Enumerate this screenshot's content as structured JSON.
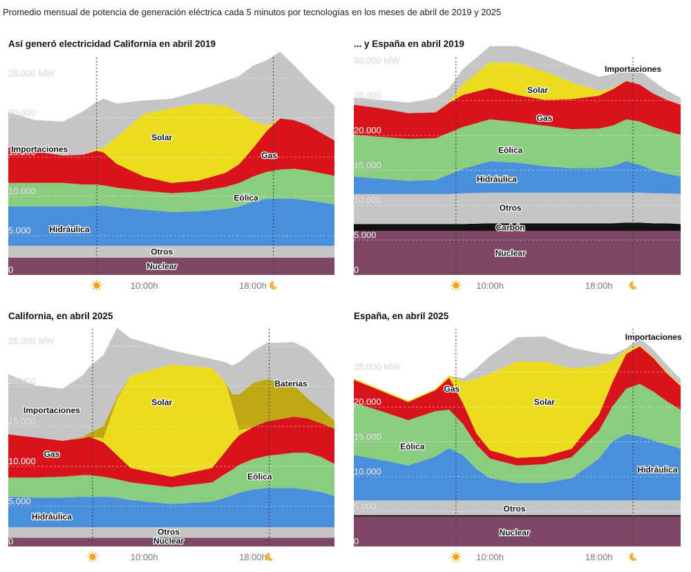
{
  "subtitle": "Promedio mensual de potencia de generación eléctrica cada 5 minutos por tecnologías en los meses de abril de 2019 y 2025",
  "colors": {
    "Nuclear": "#7d4765",
    "Otros": "#c5c5c5",
    "Carbón": "#111111",
    "Hidráulica": "#4a8fdc",
    "Eólica": "#8acc80",
    "Solar": "#ecdc1f",
    "Gas": "#d9131b",
    "Baterías": "#bea816",
    "Importaciones": "#c5c5c5"
  },
  "icons": {
    "sunrise": "sun-icon",
    "sunset": "moon-icon"
  },
  "chart_data": [
    {
      "id": "ca2019",
      "type": "area",
      "title": "Así generó electricidad California en abril 2019",
      "x": [
        0,
        2,
        4,
        5.5,
        6.5,
        7,
        8,
        10,
        12,
        14,
        16,
        17,
        18,
        19,
        20,
        21,
        22,
        24
      ],
      "xticks": [
        "10:00h",
        "18:00h"
      ],
      "xtick_values": [
        10,
        18
      ],
      "sunrise": 6.5,
      "sunset": 19.5,
      "ylim": [
        0,
        27500
      ],
      "yticks": [
        "0",
        "5.000",
        "10.000",
        "15.000",
        "20.000",
        "25.000 MW"
      ],
      "ytick_values": [
        0,
        5000,
        10000,
        15000,
        20000,
        25000
      ],
      "series": [
        {
          "name": "Nuclear",
          "values": [
            2200,
            2200,
            2200,
            2200,
            2200,
            2200,
            2200,
            2200,
            2200,
            2200,
            2200,
            2200,
            2200,
            2200,
            2200,
            2200,
            2200,
            2200
          ]
        },
        {
          "name": "Otros",
          "values": [
            1500,
            1500,
            1500,
            1500,
            1500,
            1500,
            1500,
            1500,
            1500,
            1500,
            1500,
            1500,
            1500,
            1500,
            1500,
            1500,
            1500,
            1500
          ]
        },
        {
          "name": "Hidráulica",
          "values": [
            5000,
            5000,
            5000,
            5000,
            5100,
            5100,
            4900,
            4600,
            4300,
            4400,
            4700,
            5000,
            5600,
            6000,
            6000,
            6000,
            5800,
            5300
          ]
        },
        {
          "name": "Eólica",
          "values": [
            3000,
            3000,
            3000,
            2800,
            2700,
            2600,
            2500,
            2400,
            2400,
            2500,
            2800,
            3000,
            3200,
            3400,
            3700,
            3800,
            3800,
            3600
          ]
        },
        {
          "name": "Gas",
          "values": [
            4500,
            4000,
            3500,
            3800,
            4300,
            4200,
            3000,
            1800,
            1300,
            1400,
            1800,
            2400,
            3600,
            5200,
            6500,
            6200,
            5800,
            4500
          ]
        },
        {
          "name": "Solar",
          "values": [
            0,
            0,
            0,
            0,
            200,
            600,
            3500,
            8000,
            9500,
            9800,
            8500,
            6500,
            3500,
            700,
            0,
            0,
            0,
            0
          ]
        },
        {
          "name": "Importaciones",
          "values": [
            4500,
            4000,
            4300,
            5500,
            6000,
            6200,
            4200,
            1700,
            1200,
            1600,
            3200,
            4700,
            7000,
            8300,
            8500,
            7000,
            5800,
            4400
          ]
        }
      ],
      "labels": [
        {
          "text": "Solar",
          "x": 11.3,
          "y": 17500
        },
        {
          "text": "Gas",
          "x": 19.2,
          "y": 15200
        },
        {
          "text": "Importaciones",
          "x": 2.3,
          "y": 16000
        },
        {
          "text": "Eólica",
          "x": 17.5,
          "y": 9800
        },
        {
          "text": "Hidráulica",
          "x": 4.5,
          "y": 5800
        },
        {
          "text": "Otros",
          "x": 11.3,
          "y": 2950
        },
        {
          "text": "Nuclear",
          "x": 11.3,
          "y": 1100
        }
      ]
    },
    {
      "id": "es2019",
      "type": "area",
      "title": "... y España en abril 2019",
      "x": [
        0,
        2,
        4,
        6,
        7,
        8,
        10,
        12,
        14,
        16,
        18,
        19,
        20,
        21,
        22,
        23,
        24
      ],
      "xticks": [
        "10:00h",
        "18:00h"
      ],
      "xtick_values": [
        10,
        18
      ],
      "sunrise": 7.5,
      "sunset": 20.5,
      "ylim": [
        0,
        31000
      ],
      "yticks": [
        "0",
        "5.000",
        "10.000",
        "15.000",
        "20.000",
        "25.000",
        "30.000 MW"
      ],
      "ytick_values": [
        0,
        5000,
        10000,
        15000,
        20000,
        25000,
        30000
      ],
      "series": [
        {
          "name": "Nuclear",
          "values": [
            6300,
            6300,
            6300,
            6300,
            6300,
            6300,
            6300,
            6300,
            6300,
            6300,
            6300,
            6300,
            6300,
            6300,
            6300,
            6300,
            6300
          ]
        },
        {
          "name": "Carbón",
          "values": [
            1000,
            1000,
            1000,
            1000,
            1000,
            1000,
            1100,
            1100,
            1100,
            1100,
            1100,
            1100,
            1200,
            1200,
            1100,
            1100,
            1000
          ]
        },
        {
          "name": "Otros",
          "values": [
            4300,
            4300,
            4300,
            4300,
            4300,
            4400,
            4400,
            4400,
            4400,
            4400,
            4400,
            4400,
            4300,
            4300,
            4300,
            4300,
            4300
          ]
        },
        {
          "name": "Hidráulica",
          "values": [
            2500,
            2200,
            1900,
            2000,
            2800,
            3500,
            4500,
            4300,
            3800,
            3500,
            3500,
            3800,
            4500,
            4000,
            3300,
            2800,
            2500
          ]
        },
        {
          "name": "Eólica",
          "values": [
            6000,
            6000,
            6000,
            6000,
            6000,
            6000,
            6000,
            5800,
            5800,
            5600,
            5700,
            5800,
            6000,
            6200,
            6200,
            6100,
            6000
          ]
        },
        {
          "name": "Gas",
          "values": [
            4300,
            4100,
            3700,
            3700,
            4300,
            4600,
            4500,
            3900,
            3700,
            4300,
            4700,
            5200,
            5500,
            5300,
            4800,
            4500,
            4300
          ]
        },
        {
          "name": "Solar",
          "values": [
            0,
            0,
            0,
            0,
            100,
            1500,
            3700,
            4600,
            4100,
            2400,
            700,
            200,
            0,
            0,
            0,
            0,
            0
          ]
        },
        {
          "name": "Importaciones",
          "values": [
            1000,
            1200,
            1500,
            2100,
            2000,
            2200,
            2300,
            2400,
            2300,
            2300,
            2000,
            2000,
            2200,
            2000,
            1800,
            1300,
            1000
          ]
        }
      ],
      "labels": [
        {
          "text": "Importaciones",
          "x": 20.5,
          "y": 29500
        },
        {
          "text": "Solar",
          "x": 13.5,
          "y": 26500
        },
        {
          "text": "Gas",
          "x": 14.0,
          "y": 22500
        },
        {
          "text": "Eólica",
          "x": 11.5,
          "y": 17900
        },
        {
          "text": "Hidráulica",
          "x": 10.5,
          "y": 13700
        },
        {
          "text": "Otros",
          "x": 11.5,
          "y": 9600
        },
        {
          "text": "Carbón",
          "x": 11.5,
          "y": 6800
        },
        {
          "text": "Nuclear",
          "x": 11.5,
          "y": 3100
        }
      ]
    },
    {
      "id": "ca2025",
      "type": "area",
      "title": "California, en abril 2025",
      "x": [
        0,
        2,
        4,
        5.5,
        6,
        7,
        8,
        9,
        12,
        15,
        16,
        16.5,
        17,
        18,
        19,
        21,
        22,
        23,
        24
      ],
      "xticks": [
        "10:00h",
        "18:00h"
      ],
      "xtick_values": [
        10,
        18
      ],
      "sunrise": 6.2,
      "sunset": 19.2,
      "ylim": [
        0,
        27000
      ],
      "yticks": [
        "0",
        "5.000",
        "10.000",
        "15.000",
        "20.000",
        "25.000 MW"
      ],
      "ytick_values": [
        0,
        5000,
        10000,
        15000,
        20000,
        25000
      ],
      "series": [
        {
          "name": "Nuclear",
          "values": [
            1100,
            1100,
            1100,
            1100,
            1100,
            1100,
            1100,
            1100,
            1100,
            1100,
            1100,
            1100,
            1100,
            1100,
            1100,
            1100,
            1100,
            1100,
            1100
          ]
        },
        {
          "name": "Otros",
          "values": [
            1300,
            1300,
            1300,
            1300,
            1300,
            1300,
            1300,
            1300,
            1300,
            1300,
            1300,
            1300,
            1300,
            1300,
            1300,
            1300,
            1300,
            1300,
            1300
          ]
        },
        {
          "name": "Hidráulica",
          "values": [
            3800,
            3700,
            3700,
            3800,
            3800,
            3800,
            3700,
            3400,
            2900,
            3200,
            3700,
            4000,
            4300,
            4700,
            4900,
            4900,
            4700,
            4400,
            3900
          ]
        },
        {
          "name": "Eólica",
          "values": [
            2400,
            2500,
            2600,
            2700,
            2700,
            2500,
            2300,
            2200,
            2100,
            2400,
            3000,
            3200,
            3500,
            3800,
            4000,
            4400,
            4600,
            4400,
            4000
          ]
        },
        {
          "name": "Gas",
          "values": [
            5400,
            5000,
            4500,
            4600,
            4800,
            4300,
            3000,
            1800,
            1300,
            1800,
            2800,
            3400,
            3700,
            4000,
            4300,
            4500,
            4300,
            4200,
            4400
          ]
        },
        {
          "name": "Solar",
          "values": [
            0,
            0,
            0,
            0,
            0,
            500,
            7000,
            11500,
            14000,
            12500,
            8500,
            4500,
            600,
            0,
            0,
            0,
            0,
            0,
            0
          ]
        },
        {
          "name": "Baterías",
          "values": [
            0,
            0,
            0,
            200,
            500,
            1500,
            300,
            0,
            0,
            0,
            0,
            1500,
            4500,
            5500,
            5300,
            4000,
            2500,
            1800,
            1000
          ]
        },
        {
          "name": "Importaciones",
          "values": [
            7500,
            6500,
            6500,
            7700,
            8300,
            8900,
            8600,
            4700,
            1800,
            1100,
            2600,
            3600,
            4000,
            4000,
            4500,
            5300,
            6200,
            5800,
            5200
          ]
        }
      ],
      "labels": [
        {
          "text": "Solar",
          "x": 11.3,
          "y": 18000
        },
        {
          "text": "Baterías",
          "x": 20.8,
          "y": 20300
        },
        {
          "text": "Importaciones",
          "x": 3.2,
          "y": 17000
        },
        {
          "text": "Gas",
          "x": 3.2,
          "y": 11500
        },
        {
          "text": "Eólica",
          "x": 18.5,
          "y": 8700
        },
        {
          "text": "Hidráulica",
          "x": 3.2,
          "y": 3700
        },
        {
          "text": "Otros",
          "x": 11.8,
          "y": 1800
        },
        {
          "text": "Nuclear",
          "x": 11.8,
          "y": 700
        }
      ]
    },
    {
      "id": "es2025",
      "type": "area",
      "title": "España, en abril 2025",
      "x": [
        0,
        2,
        4,
        6,
        7,
        8,
        9,
        10,
        12,
        14,
        16,
        18,
        19,
        20,
        21,
        22,
        23,
        24
      ],
      "xticks": [
        "10:00h",
        "18:00h"
      ],
      "xtick_values": [
        10,
        18
      ],
      "sunrise": 7.5,
      "sunset": 20.5,
      "ylim": [
        0,
        31000
      ],
      "yticks": [
        "0",
        "5.000",
        "10.000",
        "15.000",
        "20.000",
        "25.000 MW"
      ],
      "ytick_values": [
        0,
        5000,
        10000,
        15000,
        20000,
        25000
      ],
      "series": [
        {
          "name": "Nuclear",
          "values": [
            4300,
            4300,
            4300,
            4300,
            4300,
            4300,
            4300,
            4300,
            4300,
            4300,
            4300,
            4300,
            4300,
            4300,
            4300,
            4300,
            4300,
            4300
          ]
        },
        {
          "name": "Carbón",
          "values": [
            200,
            200,
            200,
            200,
            200,
            200,
            200,
            200,
            200,
            200,
            200,
            200,
            200,
            200,
            200,
            200,
            200,
            200
          ]
        },
        {
          "name": "Otros",
          "values": [
            2100,
            2100,
            2100,
            2100,
            2100,
            2100,
            2100,
            2100,
            2100,
            2100,
            2100,
            2100,
            2100,
            2100,
            2100,
            2100,
            2100,
            2100
          ]
        },
        {
          "name": "Hidráulica",
          "values": [
            6500,
            5800,
            5000,
            6300,
            7500,
            6500,
            4500,
            3200,
            2500,
            2500,
            3200,
            6000,
            8500,
            9500,
            9200,
            8600,
            8000,
            7400
          ]
        },
        {
          "name": "Eólica",
          "values": [
            7500,
            7000,
            6500,
            6500,
            5500,
            4500,
            3500,
            2800,
            2500,
            2700,
            3000,
            4000,
            5000,
            6500,
            7500,
            7000,
            6200,
            5600
          ]
        },
        {
          "name": "Gas",
          "values": [
            3300,
            2900,
            2600,
            3000,
            4600,
            3000,
            1600,
            1200,
            1100,
            1100,
            1200,
            2300,
            3500,
            5000,
            5400,
            4800,
            4000,
            3400
          ]
        },
        {
          "name": "Solar",
          "values": [
            200,
            200,
            200,
            200,
            300,
            3000,
            7800,
            11000,
            13800,
            13600,
            11500,
            7000,
            3000,
            500,
            200,
            200,
            200,
            200
          ]
        },
        {
          "name": "Importaciones",
          "values": [
            0,
            0,
            0,
            0,
            0,
            500,
            1500,
            2500,
            3500,
            3600,
            3000,
            1800,
            900,
            300,
            1000,
            1000,
            1000,
            800
          ]
        }
      ],
      "labels": [
        {
          "text": "Importaciones",
          "x": 22.0,
          "y": 30000
        },
        {
          "text": "Solar",
          "x": 14.0,
          "y": 20700
        },
        {
          "text": "Gas",
          "x": 7.2,
          "y": 22600
        },
        {
          "text": "Eólica",
          "x": 4.3,
          "y": 14300
        },
        {
          "text": "Hidráulica",
          "x": 22.3,
          "y": 11000
        },
        {
          "text": "Otros",
          "x": 11.8,
          "y": 5400
        },
        {
          "text": "Nuclear",
          "x": 11.8,
          "y": 2000
        }
      ]
    }
  ]
}
